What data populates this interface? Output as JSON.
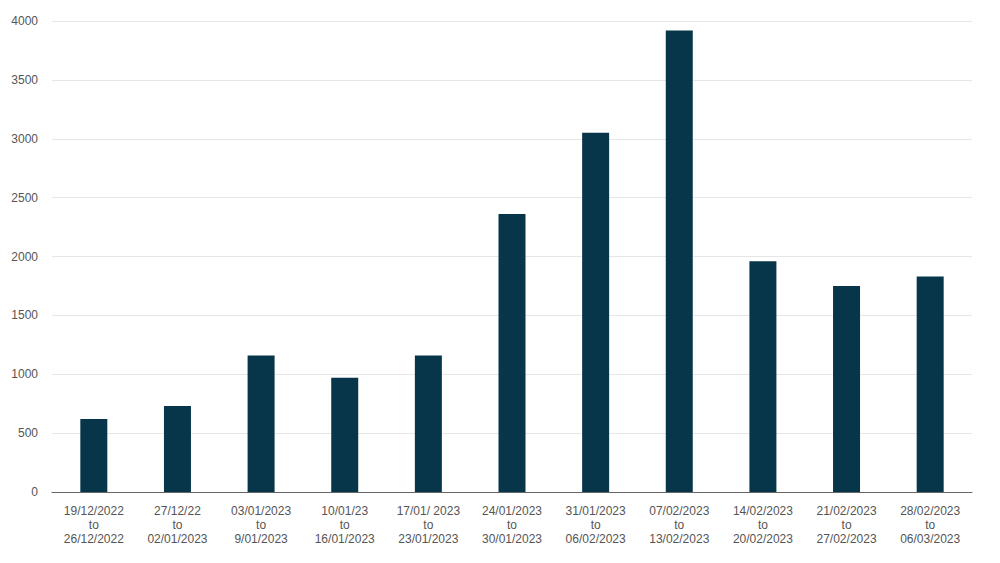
{
  "chart_data": {
    "type": "bar",
    "categories": [
      "19/12/2022\nto\n26/12/2022",
      "27/12/22\nto\n02/01/2023",
      "03/01/2023\nto\n9/01/2023",
      "10/01/23\nto\n16/01/2023",
      "17/01/ 2023\nto\n23/01/2023",
      "24/01/2023\nto\n30/01/2023",
      "31/01/2023\nto\n06/02/2023",
      "07/02/2023\nto\n13/02/2023",
      "14/02/2023\nto\n20/02/2023",
      "21/02/2023\nto\n27/02/2023",
      "28/02/2023\nto\n06/03/2023"
    ],
    "values": [
      620,
      730,
      1160,
      970,
      1160,
      2360,
      3050,
      3920,
      1960,
      1750,
      1830
    ],
    "color": "#07364a",
    "ylim": [
      0,
      4000
    ],
    "yticks": [
      0,
      500,
      1000,
      1500,
      2000,
      2500,
      3000,
      3500,
      4000
    ],
    "grid": true
  }
}
